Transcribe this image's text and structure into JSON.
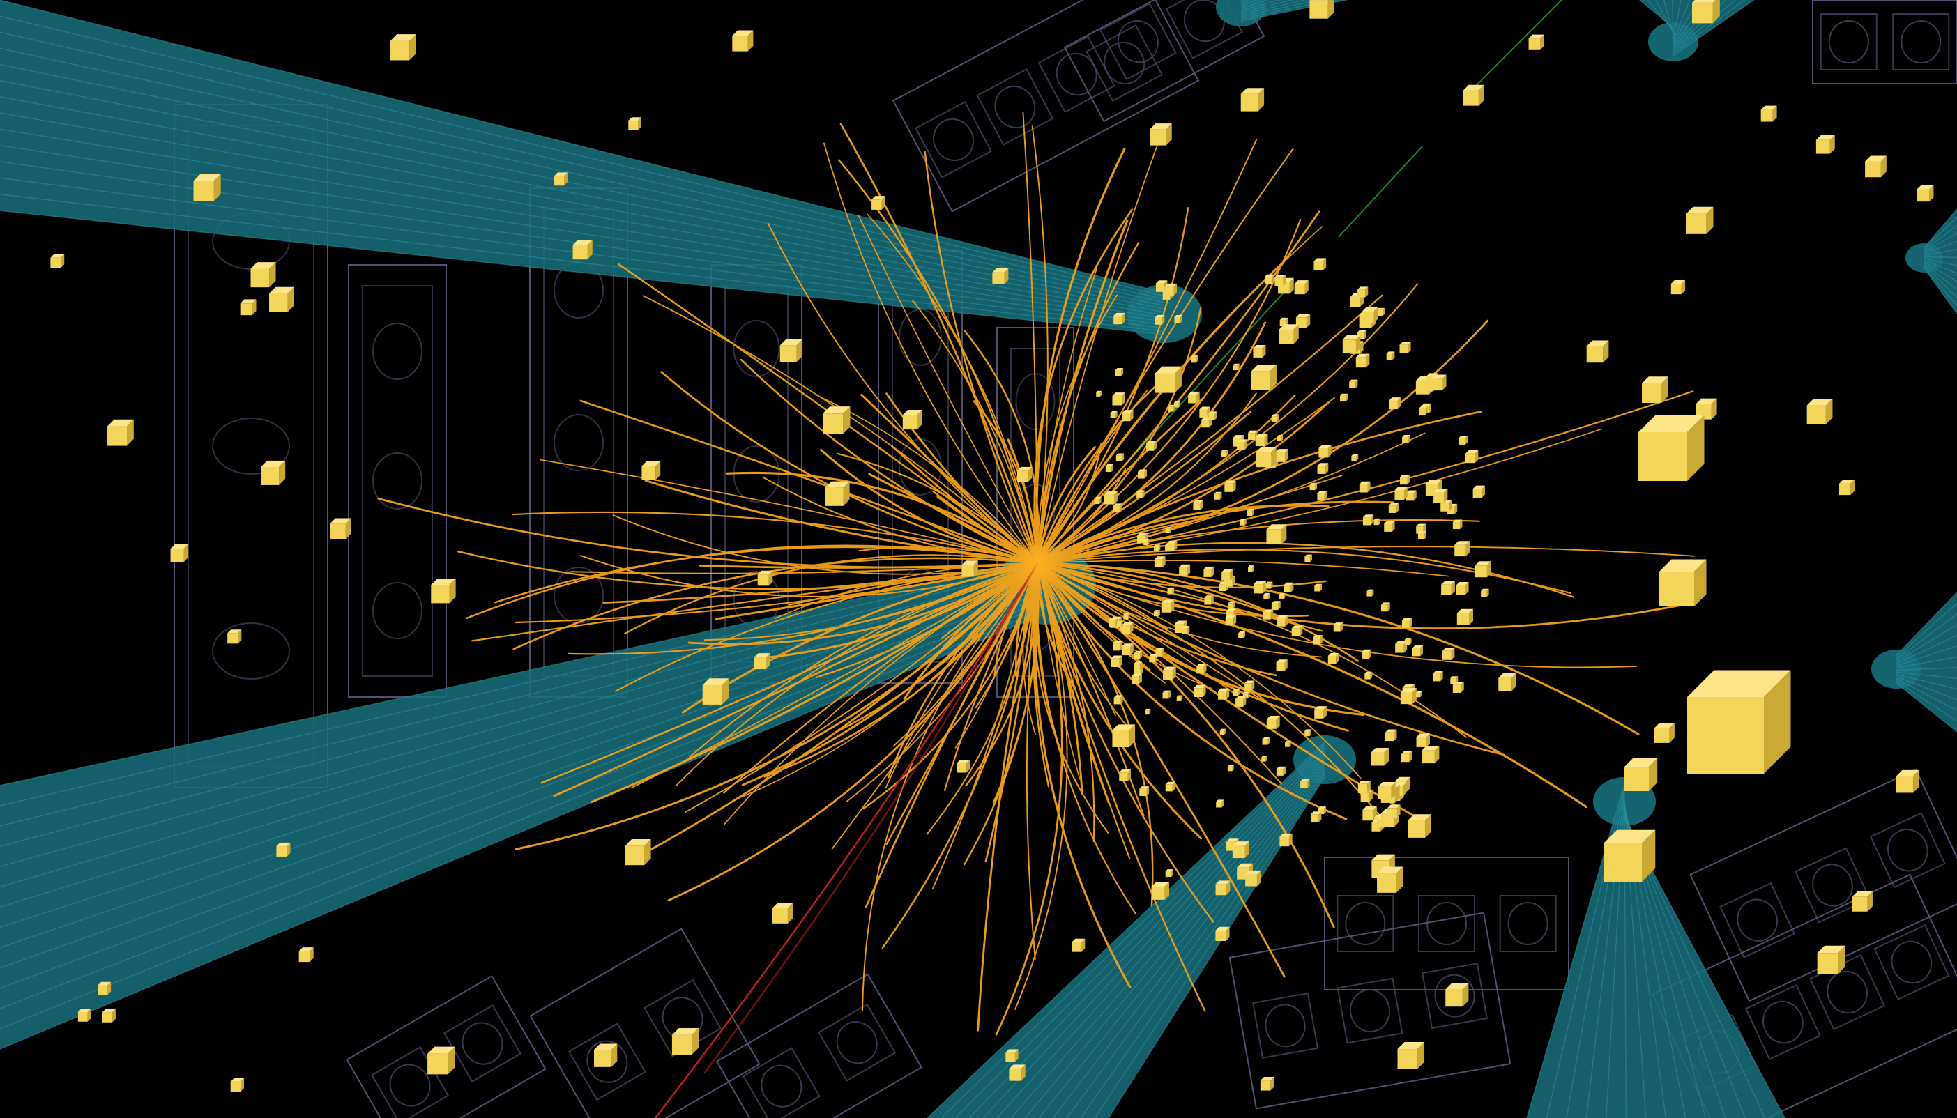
{
  "scene": {
    "description_visible_text": "",
    "colors": {
      "background": "#000000",
      "detector_wireframe": "#5d5a7e",
      "jet_cone": "#17707c",
      "jet_cone_edge": "#2a93a0",
      "particle_track": "#f5a31a",
      "energy_deposit": "#f3d55a",
      "energy_deposit_shade": "#c9a833",
      "muon_track": "#c0201c",
      "aux_track": "#1a8a2a"
    },
    "layers": [
      "detector-wireframe",
      "jet-cones",
      "particle-tracks",
      "muon-track",
      "energy-deposits"
    ]
  }
}
